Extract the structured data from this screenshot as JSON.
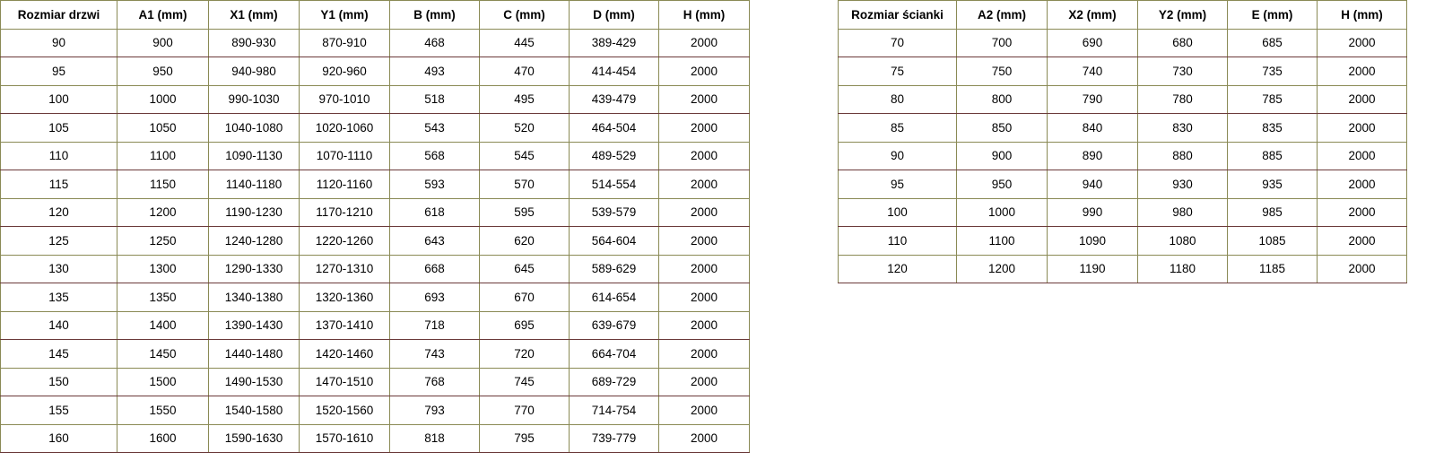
{
  "doors_table": {
    "headers": [
      "Rozmiar drzwi",
      "A1 (mm)",
      "X1 (mm)",
      "Y1 (mm)",
      "B (mm)",
      "C (mm)",
      "D (mm)",
      "H (mm)"
    ],
    "rows": [
      [
        "90",
        "900",
        "890-930",
        "870-910",
        "468",
        "445",
        "389-429",
        "2000"
      ],
      [
        "95",
        "950",
        "940-980",
        "920-960",
        "493",
        "470",
        "414-454",
        "2000"
      ],
      [
        "100",
        "1000",
        "990-1030",
        "970-1010",
        "518",
        "495",
        "439-479",
        "2000"
      ],
      [
        "105",
        "1050",
        "1040-1080",
        "1020-1060",
        "543",
        "520",
        "464-504",
        "2000"
      ],
      [
        "110",
        "1100",
        "1090-1130",
        "1070-1110",
        "568",
        "545",
        "489-529",
        "2000"
      ],
      [
        "115",
        "1150",
        "1140-1180",
        "1120-1160",
        "593",
        "570",
        "514-554",
        "2000"
      ],
      [
        "120",
        "1200",
        "1190-1230",
        "1170-1210",
        "618",
        "595",
        "539-579",
        "2000"
      ],
      [
        "125",
        "1250",
        "1240-1280",
        "1220-1260",
        "643",
        "620",
        "564-604",
        "2000"
      ],
      [
        "130",
        "1300",
        "1290-1330",
        "1270-1310",
        "668",
        "645",
        "589-629",
        "2000"
      ],
      [
        "135",
        "1350",
        "1340-1380",
        "1320-1360",
        "693",
        "670",
        "614-654",
        "2000"
      ],
      [
        "140",
        "1400",
        "1390-1430",
        "1370-1410",
        "718",
        "695",
        "639-679",
        "2000"
      ],
      [
        "145",
        "1450",
        "1440-1480",
        "1420-1460",
        "743",
        "720",
        "664-704",
        "2000"
      ],
      [
        "150",
        "1500",
        "1490-1530",
        "1470-1510",
        "768",
        "745",
        "689-729",
        "2000"
      ],
      [
        "155",
        "1550",
        "1540-1580",
        "1520-1560",
        "793",
        "770",
        "714-754",
        "2000"
      ],
      [
        "160",
        "1600",
        "1590-1630",
        "1570-1610",
        "818",
        "795",
        "739-779",
        "2000"
      ]
    ]
  },
  "wall_table": {
    "headers": [
      "Rozmiar ścianki",
      "A2 (mm)",
      "X2 (mm)",
      "Y2 (mm)",
      "E (mm)",
      "H (mm)"
    ],
    "rows": [
      [
        "70",
        "700",
        "690",
        "680",
        "685",
        "2000"
      ],
      [
        "75",
        "750",
        "740",
        "730",
        "735",
        "2000"
      ],
      [
        "80",
        "800",
        "790",
        "780",
        "785",
        "2000"
      ],
      [
        "85",
        "850",
        "840",
        "830",
        "835",
        "2000"
      ],
      [
        "90",
        "900",
        "890",
        "880",
        "885",
        "2000"
      ],
      [
        "95",
        "950",
        "940",
        "930",
        "935",
        "2000"
      ],
      [
        "100",
        "1000",
        "990",
        "980",
        "985",
        "2000"
      ],
      [
        "110",
        "1100",
        "1090",
        "1080",
        "1085",
        "2000"
      ],
      [
        "120",
        "1200",
        "1190",
        "1180",
        "1185",
        "2000"
      ]
    ]
  }
}
